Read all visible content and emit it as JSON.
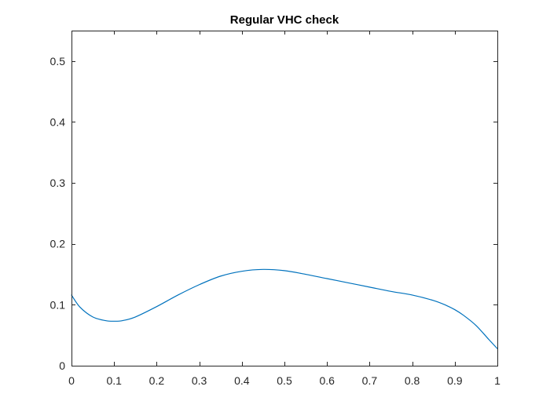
{
  "chart_data": {
    "type": "line",
    "title": "Regular VHC check",
    "xlabel": "",
    "ylabel": "",
    "xlim": [
      0,
      1
    ],
    "ylim": [
      0,
      0.55
    ],
    "xticks": [
      "0",
      "0.1",
      "0.2",
      "0.3",
      "0.4",
      "0.5",
      "0.6",
      "0.7",
      "0.8",
      "0.9",
      "1"
    ],
    "yticks": [
      "0",
      "0.1",
      "0.2",
      "0.3",
      "0.4",
      "0.5"
    ],
    "grid": false,
    "box": true,
    "series": [
      {
        "color": "#0072bd",
        "x": [
          0,
          0.02,
          0.05,
          0.08,
          0.1,
          0.12,
          0.15,
          0.2,
          0.25,
          0.3,
          0.35,
          0.4,
          0.45,
          0.5,
          0.55,
          0.6,
          0.65,
          0.7,
          0.75,
          0.8,
          0.85,
          0.88,
          0.9,
          0.92,
          0.95,
          0.98,
          1.0
        ],
        "y": [
          0.116,
          0.096,
          0.08,
          0.074,
          0.073,
          0.074,
          0.08,
          0.097,
          0.116,
          0.133,
          0.147,
          0.155,
          0.158,
          0.156,
          0.15,
          0.143,
          0.136,
          0.129,
          0.122,
          0.116,
          0.107,
          0.099,
          0.092,
          0.083,
          0.066,
          0.043,
          0.028
        ]
      }
    ]
  }
}
